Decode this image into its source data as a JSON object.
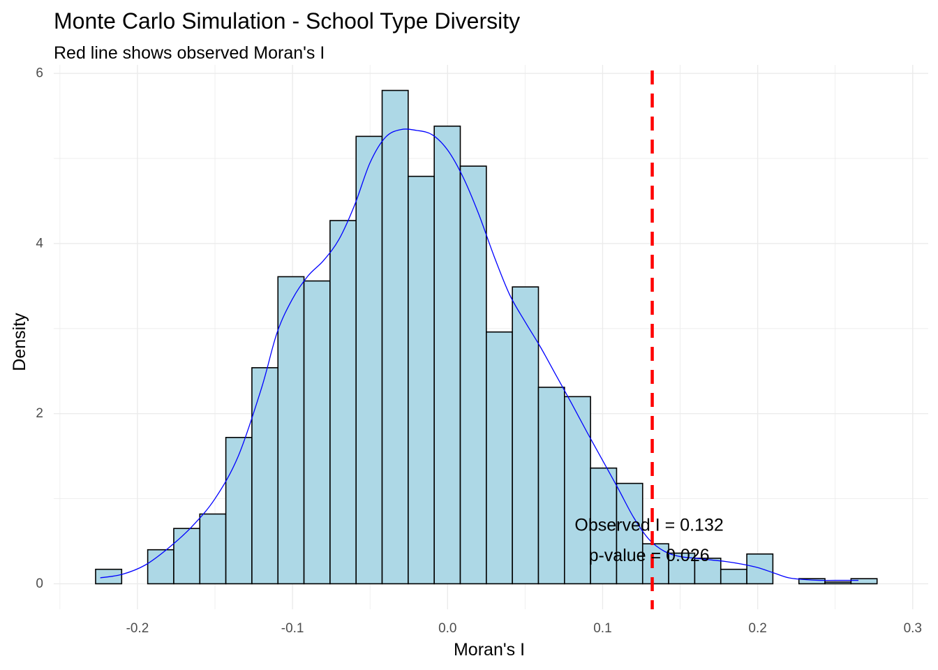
{
  "chart_data": {
    "type": "bar",
    "title": "Monte Carlo Simulation - School Type Diversity",
    "subtitle": "Red line shows observed Moran's I",
    "xlabel": "Moran's I",
    "ylabel": "Density",
    "xlim": [
      -0.254,
      0.31
    ],
    "ylim": [
      -0.3,
      6.1
    ],
    "x_ticks": [
      -0.2,
      -0.1,
      0.0,
      0.1,
      0.2,
      0.3
    ],
    "x_tick_labels": [
      "-0.2",
      "-0.1",
      "0.0",
      "0.1",
      "0.2",
      "0.3"
    ],
    "y_ticks": [
      0,
      2,
      4,
      6
    ],
    "y_tick_labels": [
      "0",
      "2",
      "4",
      "6"
    ],
    "grid": true,
    "histogram": {
      "bin_width": 0.0168,
      "bins": [
        {
          "x0": -0.227,
          "x1": -0.2102,
          "density": 0.17
        },
        {
          "x0": -0.2102,
          "x1": -0.1934,
          "density": 0.0
        },
        {
          "x0": -0.1934,
          "x1": -0.1766,
          "density": 0.4
        },
        {
          "x0": -0.1766,
          "x1": -0.1598,
          "density": 0.65
        },
        {
          "x0": -0.1598,
          "x1": -0.143,
          "density": 0.82
        },
        {
          "x0": -0.143,
          "x1": -0.1262,
          "density": 1.72
        },
        {
          "x0": -0.1262,
          "x1": -0.1094,
          "density": 2.54
        },
        {
          "x0": -0.1094,
          "x1": -0.0926,
          "density": 3.61
        },
        {
          "x0": -0.0926,
          "x1": -0.0758,
          "density": 3.56
        },
        {
          "x0": -0.0758,
          "x1": -0.059,
          "density": 4.27
        },
        {
          "x0": -0.059,
          "x1": -0.0422,
          "density": 5.26
        },
        {
          "x0": -0.0422,
          "x1": -0.0254,
          "density": 5.8
        },
        {
          "x0": -0.0254,
          "x1": -0.0086,
          "density": 4.79
        },
        {
          "x0": -0.0086,
          "x1": 0.0082,
          "density": 5.38
        },
        {
          "x0": 0.0082,
          "x1": 0.025,
          "density": 4.91
        },
        {
          "x0": 0.025,
          "x1": 0.0418,
          "density": 2.96
        },
        {
          "x0": 0.0418,
          "x1": 0.0586,
          "density": 3.49
        },
        {
          "x0": 0.0586,
          "x1": 0.0754,
          "density": 2.31
        },
        {
          "x0": 0.0754,
          "x1": 0.0922,
          "density": 2.2
        },
        {
          "x0": 0.0922,
          "x1": 0.109,
          "density": 1.36
        },
        {
          "x0": 0.109,
          "x1": 0.1258,
          "density": 1.18
        },
        {
          "x0": 0.1258,
          "x1": 0.1426,
          "density": 0.47
        },
        {
          "x0": 0.1426,
          "x1": 0.1594,
          "density": 0.36
        },
        {
          "x0": 0.1594,
          "x1": 0.1762,
          "density": 0.3
        },
        {
          "x0": 0.1762,
          "x1": 0.193,
          "density": 0.17
        },
        {
          "x0": 0.193,
          "x1": 0.2098,
          "density": 0.35
        },
        {
          "x0": 0.2098,
          "x1": 0.2266,
          "density": 0.0
        },
        {
          "x0": 0.2266,
          "x1": 0.2434,
          "density": 0.06
        },
        {
          "x0": 0.2434,
          "x1": 0.2602,
          "density": 0.02
        },
        {
          "x0": 0.2602,
          "x1": 0.277,
          "density": 0.06
        }
      ],
      "fill": "#add8e6",
      "stroke": "#000000"
    },
    "density_curve": {
      "color": "#0000ff",
      "points": [
        [
          -0.224,
          0.07
        ],
        [
          -0.21,
          0.11
        ],
        [
          -0.195,
          0.22
        ],
        [
          -0.18,
          0.42
        ],
        [
          -0.165,
          0.67
        ],
        [
          -0.15,
          1.0
        ],
        [
          -0.135,
          1.5
        ],
        [
          -0.12,
          2.3
        ],
        [
          -0.11,
          2.95
        ],
        [
          -0.1,
          3.35
        ],
        [
          -0.09,
          3.62
        ],
        [
          -0.08,
          3.8
        ],
        [
          -0.07,
          4.05
        ],
        [
          -0.06,
          4.45
        ],
        [
          -0.05,
          4.95
        ],
        [
          -0.04,
          5.25
        ],
        [
          -0.03,
          5.34
        ],
        [
          -0.02,
          5.33
        ],
        [
          -0.01,
          5.28
        ],
        [
          0.0,
          5.1
        ],
        [
          0.01,
          4.78
        ],
        [
          0.02,
          4.35
        ],
        [
          0.03,
          3.85
        ],
        [
          0.04,
          3.4
        ],
        [
          0.05,
          3.08
        ],
        [
          0.06,
          2.78
        ],
        [
          0.07,
          2.45
        ],
        [
          0.08,
          2.12
        ],
        [
          0.09,
          1.78
        ],
        [
          0.1,
          1.45
        ],
        [
          0.11,
          1.12
        ],
        [
          0.12,
          0.78
        ],
        [
          0.13,
          0.52
        ],
        [
          0.14,
          0.38
        ],
        [
          0.15,
          0.32
        ],
        [
          0.16,
          0.3
        ],
        [
          0.17,
          0.28
        ],
        [
          0.18,
          0.26
        ],
        [
          0.19,
          0.23
        ],
        [
          0.2,
          0.19
        ],
        [
          0.21,
          0.13
        ],
        [
          0.22,
          0.07
        ],
        [
          0.23,
          0.05
        ],
        [
          0.24,
          0.04
        ],
        [
          0.25,
          0.04
        ],
        [
          0.265,
          0.04
        ]
      ]
    },
    "observed_line": {
      "x": 0.132,
      "color": "#ff0000",
      "style": "dashed"
    },
    "annotations": [
      {
        "text": "Observed I = 0.132",
        "x": 0.13,
        "y": 0.69
      },
      {
        "text": "p-value = 0.026",
        "x": 0.13,
        "y": 0.33
      }
    ]
  }
}
